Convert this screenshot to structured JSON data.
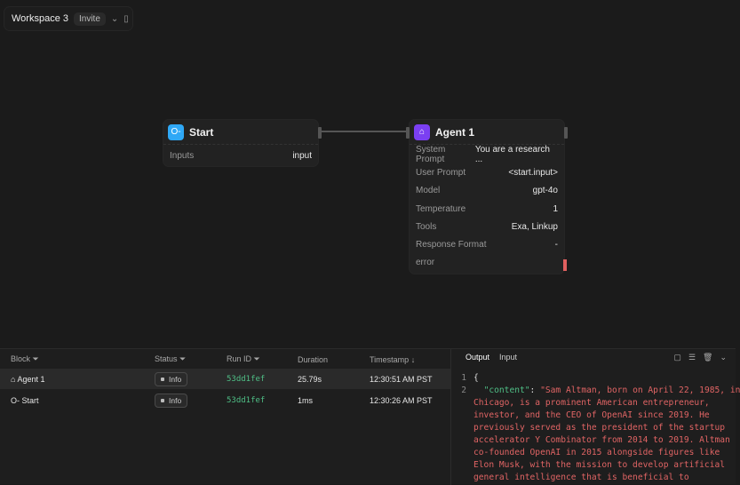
{
  "workspace": {
    "name": "Workspace 3",
    "invite": "Invite"
  },
  "nodes": {
    "start": {
      "title": "Start",
      "icon": "key-icon",
      "color": "#2fa8f6",
      "rows": [
        {
          "k": "Inputs",
          "v": "input"
        }
      ]
    },
    "agent": {
      "title": "Agent 1",
      "icon": "robot-icon",
      "color": "#7b3ff2",
      "rows": [
        {
          "k": "System Prompt",
          "v": "You are a research ..."
        },
        {
          "k": "User Prompt",
          "v": "<start.input>"
        },
        {
          "k": "Model",
          "v": "gpt-4o"
        },
        {
          "k": "Temperature",
          "v": "1"
        },
        {
          "k": "Tools",
          "v": "Exa, Linkup"
        },
        {
          "k": "Response Format",
          "v": "-"
        },
        {
          "k": "error",
          "v": ""
        }
      ]
    }
  },
  "logs": {
    "headers": {
      "block": "Block",
      "status": "Status",
      "run_id": "Run ID",
      "duration": "Duration",
      "timestamp": "Timestamp"
    },
    "rows": [
      {
        "block": "Agent 1",
        "icon": "robot-icon",
        "status": "Info",
        "run_id": "53dd1fef",
        "duration": "25.79s",
        "timestamp": "12:30:51 AM PST"
      },
      {
        "block": "Start",
        "icon": "key-icon",
        "status": "Info",
        "run_id": "53dd1fef",
        "duration": "1ms",
        "timestamp": "12:30:26 AM PST"
      }
    ]
  },
  "output": {
    "tabs": [
      "Output",
      "Input"
    ],
    "lines": [
      {
        "n": "1",
        "text": "{"
      },
      {
        "n": "2",
        "key": "\"content\"",
        "text": "\"Sam Altman, born on April 22, 1985, in"
      },
      {
        "n": "",
        "text": "Chicago, is a prominent American entrepreneur,"
      },
      {
        "n": "",
        "text": "investor, and the CEO of OpenAI since 2019. He"
      },
      {
        "n": "",
        "text": "previously served as the president of the startup"
      },
      {
        "n": "",
        "text": "accelerator Y Combinator from 2014 to 2019. Altman"
      },
      {
        "n": "",
        "text": "co-founded OpenAI in 2015 alongside figures like"
      },
      {
        "n": "",
        "text": "Elon Musk, with the mission to develop artificial"
      },
      {
        "n": "",
        "text": "general intelligence that is beneficial to"
      }
    ]
  }
}
